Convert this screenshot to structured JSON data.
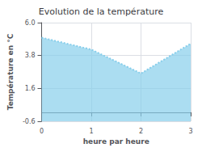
{
  "chart_data": {
    "type": "area",
    "title": "Evolution de la température",
    "xlabel": "heure par heure",
    "ylabel": "Température en °C",
    "x": [
      0,
      1,
      2,
      3
    ],
    "values": [
      5.0,
      4.2,
      2.6,
      4.6
    ],
    "color": "#87ceeb",
    "line_style": "dotted",
    "xlim": [
      0,
      3
    ],
    "xticks": [
      0,
      1,
      2,
      3
    ],
    "ylim": [
      -0.6,
      6.0
    ],
    "yticks": [
      -0.6,
      1.6,
      3.8,
      {
        "value": 6.0,
        "label": "6.0"
      }
    ],
    "grid": true
  }
}
